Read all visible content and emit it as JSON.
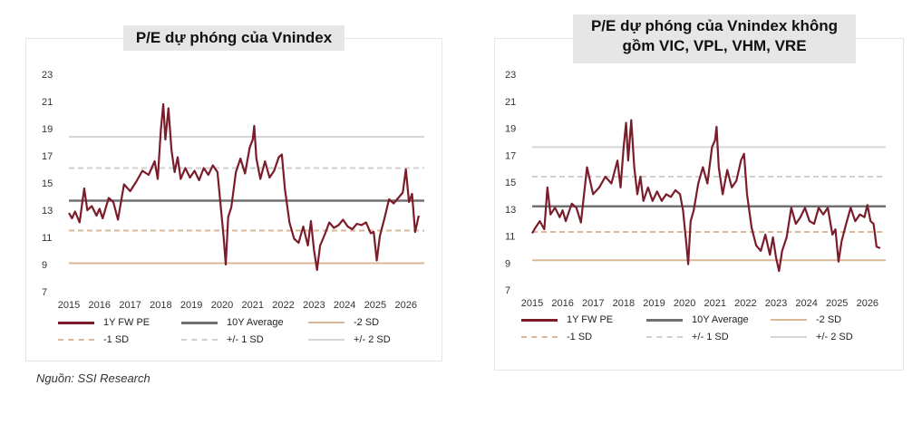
{
  "chart_data": [
    {
      "type": "line",
      "title": "P/E dự phóng của Vnindex",
      "ylim": [
        7,
        23
      ],
      "yticks": [
        7,
        9,
        11,
        13,
        15,
        17,
        19,
        21,
        23
      ],
      "xlim": [
        2015,
        2026.6
      ],
      "xticks": [
        "2015",
        "2016",
        "2017",
        "2018",
        "2019",
        "2020",
        "2021",
        "2022",
        "2023",
        "2024",
        "2025",
        "2026"
      ],
      "hlines": {
        "avg": 13.7,
        "minus1sd": 11.5,
        "minus2sd": 9.1,
        "plus1sd": 16.1,
        "plus2sd": 18.4
      },
      "series": [
        {
          "name": "1Y FW PE",
          "color": "#7b1c2a",
          "x": [
            2015.0,
            2015.1,
            2015.2,
            2015.35,
            2015.5,
            2015.6,
            2015.75,
            2015.9,
            2016.0,
            2016.1,
            2016.3,
            2016.45,
            2016.6,
            2016.8,
            2017.0,
            2017.2,
            2017.4,
            2017.6,
            2017.8,
            2017.9,
            2018.0,
            2018.08,
            2018.15,
            2018.25,
            2018.35,
            2018.45,
            2018.55,
            2018.65,
            2018.8,
            2018.95,
            2019.1,
            2019.25,
            2019.4,
            2019.55,
            2019.7,
            2019.85,
            2019.95,
            2020.05,
            2020.12,
            2020.2,
            2020.3,
            2020.45,
            2020.6,
            2020.75,
            2020.9,
            2021.0,
            2021.05,
            2021.12,
            2021.25,
            2021.4,
            2021.55,
            2021.7,
            2021.85,
            2021.95,
            2022.05,
            2022.2,
            2022.35,
            2022.5,
            2022.65,
            2022.8,
            2022.9,
            2023.0,
            2023.1,
            2023.2,
            2023.35,
            2023.5,
            2023.65,
            2023.8,
            2023.95,
            2024.1,
            2024.25,
            2024.4,
            2024.55,
            2024.7,
            2024.85,
            2024.95,
            2025.05,
            2025.15,
            2025.3,
            2025.45,
            2025.6,
            2025.75,
            2025.9,
            2026.0,
            2026.1,
            2026.2,
            2026.3,
            2026.42
          ],
          "y": [
            12.8,
            12.4,
            12.9,
            12.1,
            14.6,
            13.0,
            13.3,
            12.6,
            13.1,
            12.4,
            13.9,
            13.6,
            12.3,
            14.9,
            14.4,
            15.1,
            15.9,
            15.6,
            16.6,
            15.3,
            18.9,
            20.8,
            18.2,
            20.5,
            17.4,
            15.8,
            16.9,
            15.3,
            16.1,
            15.4,
            15.9,
            15.2,
            16.1,
            15.6,
            16.3,
            15.8,
            13.4,
            11.0,
            9.0,
            12.5,
            13.2,
            15.8,
            16.8,
            15.7,
            17.6,
            18.2,
            19.2,
            16.8,
            15.3,
            16.6,
            15.4,
            15.9,
            16.9,
            17.1,
            14.6,
            12.1,
            10.9,
            10.6,
            11.8,
            10.4,
            12.2,
            10.1,
            8.6,
            10.4,
            11.2,
            12.1,
            11.7,
            11.9,
            12.3,
            11.8,
            11.6,
            12.0,
            11.9,
            12.1,
            11.3,
            11.4,
            9.3,
            11.1,
            12.4,
            13.8,
            13.5,
            13.9,
            14.3,
            16.0,
            13.6,
            14.2,
            11.4,
            12.6
          ]
        }
      ],
      "legend": {
        "series_label": "1Y FW PE",
        "avg_label": "10Y Average",
        "minus2sd_label": "-2 SD",
        "minus1sd_label": "-1 SD",
        "pm1sd_label": "+/- 1 SD",
        "pm2sd_label": "+/- 2 SD"
      },
      "colors": {
        "series": "#7b1c2a",
        "avg": "#707070",
        "sd2": "#d9b797",
        "sd1": "#d9b797",
        "pm1": "#cfcfcf",
        "pm2": "#d6d6d6"
      }
    },
    {
      "type": "line",
      "title": "P/E dự phóng của Vnindex không gồm VIC, VPL, VHM, VRE",
      "ylim": [
        7,
        23
      ],
      "yticks": [
        7,
        9,
        11,
        13,
        15,
        17,
        19,
        21,
        23
      ],
      "xlim": [
        2015,
        2026.6
      ],
      "xticks": [
        "2015",
        "2016",
        "2017",
        "2018",
        "2019",
        "2020",
        "2021",
        "2022",
        "2023",
        "2024",
        "2025",
        "2026"
      ],
      "hlines": {
        "avg": 13.2,
        "minus1sd": 11.3,
        "minus2sd": 9.2,
        "plus1sd": 15.4,
        "plus2sd": 17.6
      },
      "series": [
        {
          "name": "1Y FW PE",
          "color": "#7b1c2a",
          "x": [
            2015.0,
            2015.1,
            2015.25,
            2015.4,
            2015.5,
            2015.6,
            2015.75,
            2015.9,
            2016.0,
            2016.1,
            2016.3,
            2016.45,
            2016.6,
            2016.8,
            2017.0,
            2017.2,
            2017.4,
            2017.6,
            2017.8,
            2017.9,
            2018.0,
            2018.08,
            2018.15,
            2018.25,
            2018.35,
            2018.45,
            2018.55,
            2018.65,
            2018.8,
            2018.95,
            2019.1,
            2019.25,
            2019.4,
            2019.55,
            2019.7,
            2019.85,
            2019.95,
            2020.05,
            2020.12,
            2020.2,
            2020.3,
            2020.45,
            2020.6,
            2020.75,
            2020.9,
            2021.0,
            2021.05,
            2021.12,
            2021.25,
            2021.4,
            2021.55,
            2021.7,
            2021.85,
            2021.95,
            2022.05,
            2022.2,
            2022.35,
            2022.5,
            2022.65,
            2022.8,
            2022.9,
            2023.0,
            2023.1,
            2023.2,
            2023.35,
            2023.5,
            2023.65,
            2023.8,
            2023.95,
            2024.1,
            2024.25,
            2024.4,
            2024.55,
            2024.7,
            2024.85,
            2024.95,
            2025.05,
            2025.15,
            2025.3,
            2025.45,
            2025.6,
            2025.75,
            2025.9,
            2026.0,
            2026.1,
            2026.2,
            2026.3,
            2026.42
          ],
          "y": [
            11.2,
            11.6,
            12.1,
            11.5,
            14.6,
            12.6,
            13.1,
            12.4,
            12.9,
            12.1,
            13.4,
            13.1,
            12.0,
            16.1,
            14.1,
            14.6,
            15.4,
            14.9,
            16.6,
            14.6,
            17.6,
            19.4,
            16.6,
            19.6,
            16.1,
            14.1,
            15.4,
            13.6,
            14.6,
            13.6,
            14.3,
            13.6,
            14.1,
            13.9,
            14.4,
            14.1,
            12.9,
            10.6,
            8.9,
            12.1,
            12.9,
            14.9,
            16.1,
            14.9,
            17.6,
            18.1,
            19.1,
            16.1,
            14.1,
            15.9,
            14.6,
            15.1,
            16.6,
            17.1,
            14.1,
            11.6,
            10.3,
            9.9,
            11.1,
            9.6,
            10.9,
            9.4,
            8.4,
            9.9,
            10.9,
            13.1,
            11.9,
            12.4,
            13.1,
            12.1,
            11.9,
            13.1,
            12.6,
            13.1,
            11.1,
            11.5,
            9.1,
            10.6,
            11.9,
            13.1,
            12.1,
            12.6,
            12.4,
            13.3,
            12.1,
            11.9,
            10.2,
            10.1
          ]
        }
      ],
      "legend": {
        "series_label": "1Y FW PE",
        "avg_label": "10Y Average",
        "minus2sd_label": "-2 SD",
        "minus1sd_label": "-1 SD",
        "pm1sd_label": "+/- 1 SD",
        "pm2sd_label": "+/- 2 SD"
      },
      "colors": {
        "series": "#7b1c2a",
        "avg": "#707070",
        "sd2": "#d9b797",
        "sd1": "#d9b797",
        "pm1": "#cfcfcf",
        "pm2": "#d6d6d6"
      }
    }
  ],
  "source_note": "Nguồn: SSI Research"
}
